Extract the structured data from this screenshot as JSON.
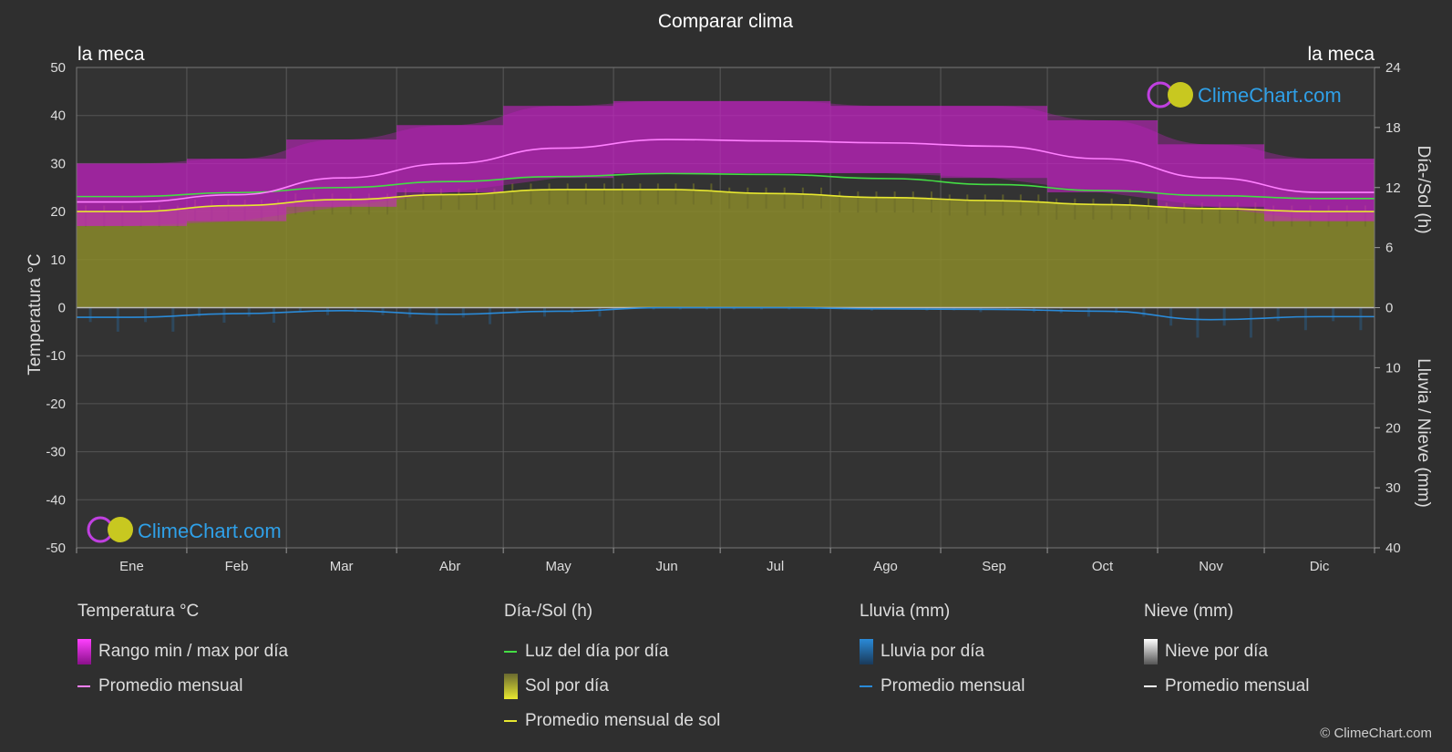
{
  "title": "Comparar clima",
  "location_left": "la meca",
  "location_right": "la meca",
  "brand": "ClimeChart.com",
  "copyright": "© ClimeChart.com",
  "legend": {
    "temperature": {
      "title": "Temperatura °C",
      "range": "Rango min / max por día",
      "avg": "Promedio mensual"
    },
    "sun": {
      "title": "Día-/Sol (h)",
      "daylight": "Luz del día por día",
      "sun_day": "Sol por día",
      "sun_avg": "Promedio mensual de sol"
    },
    "rain": {
      "title": "Lluvia (mm)",
      "rain_day": "Lluvia por día",
      "avg": "Promedio mensual"
    },
    "snow": {
      "title": "Nieve (mm)",
      "snow_day": "Nieve por día",
      "avg": "Promedio mensual"
    }
  },
  "colors": {
    "temp_avg": "#ff80ff",
    "temp_range": "#d020d0",
    "daylight": "#44dd44",
    "sunshine_fill": "#8a8a2a",
    "sunshine_avg": "#e8e830",
    "rain": "#2a8ad8",
    "snow": "#ffffff",
    "brand_blue": "#2fa0e8"
  },
  "chart_data": {
    "type": "area",
    "title": "Comparar clima",
    "categories": [
      "Ene",
      "Feb",
      "Mar",
      "Abr",
      "May",
      "Jun",
      "Jul",
      "Ago",
      "Sep",
      "Oct",
      "Nov",
      "Dic"
    ],
    "y_left": {
      "label": "Temperatura °C",
      "ticks": [
        50,
        40,
        30,
        20,
        10,
        0,
        -10,
        -20,
        -30,
        -40,
        -50
      ],
      "range": [
        -50,
        50
      ]
    },
    "y_right_top": {
      "label": "Día-/Sol (h)",
      "ticks": [
        24,
        18,
        12,
        6,
        0
      ],
      "range": [
        0,
        24
      ]
    },
    "y_right_bottom": {
      "label": "Lluvia / Nieve (mm)",
      "ticks": [
        0,
        10,
        20,
        30,
        40
      ],
      "range": [
        0,
        40
      ]
    },
    "series": [
      {
        "name": "Promedio mensual",
        "group": "temperature",
        "values": [
          22.0,
          23.5,
          27.0,
          30.0,
          33.2,
          35.0,
          34.7,
          34.3,
          33.6,
          31.0,
          27.0,
          24.0
        ]
      },
      {
        "name": "Rango min / max por día",
        "group": "temperature",
        "min": [
          17,
          18,
          21,
          24,
          27,
          28,
          28,
          28,
          27,
          24,
          21,
          18
        ],
        "max": [
          30,
          31,
          35,
          38,
          42,
          43,
          43,
          42,
          42,
          39,
          34,
          31
        ]
      },
      {
        "name": "Luz del día por día",
        "group": "sun_hours",
        "values": [
          11.1,
          11.5,
          12.0,
          12.6,
          13.1,
          13.4,
          13.3,
          12.9,
          12.3,
          11.7,
          11.2,
          10.9
        ]
      },
      {
        "name": "Promedio mensual de sol",
        "group": "sun_hours",
        "values": [
          9.6,
          10.2,
          10.8,
          11.3,
          11.8,
          11.8,
          11.4,
          11.0,
          10.7,
          10.3,
          9.9,
          9.6
        ]
      },
      {
        "name": "Promedio mensual",
        "group": "rain_mm",
        "values": [
          1.6,
          1.0,
          0.5,
          1.1,
          0.6,
          0.0,
          0.0,
          0.2,
          0.3,
          0.6,
          2.0,
          1.5
        ]
      }
    ],
    "grid": true,
    "legend_position": "bottom"
  }
}
